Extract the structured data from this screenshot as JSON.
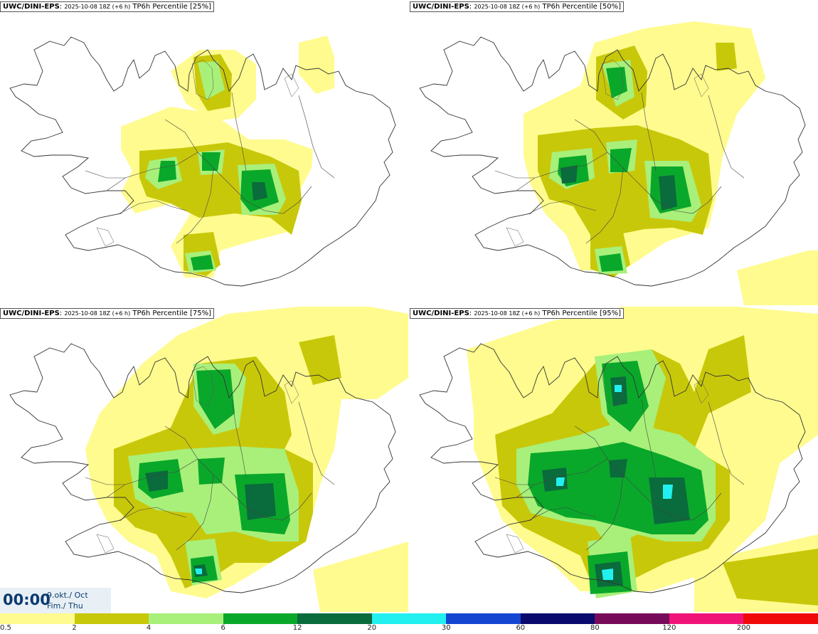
{
  "panels": [
    {
      "model": "UWC/DINI-EPS",
      "run": "2025-10-08 18Z (+6 h)",
      "field": "TP6h Percentile",
      "pct": "[25%]"
    },
    {
      "model": "UWC/DINI-EPS",
      "run": "2025-10-08 18Z (+6 h)",
      "field": "TP6h Percentile",
      "pct": "[50%]"
    },
    {
      "model": "UWC/DINI-EPS",
      "run": "2025-10-08 18Z (+6 h)",
      "field": "TP6h Percentile",
      "pct": "[75%]"
    },
    {
      "model": "UWC/DINI-EPS",
      "run": "2025-10-08 18Z (+6 h)",
      "field": "TP6h Percentile",
      "pct": "[95%]"
    }
  ],
  "timestamp": {
    "time": "00:00",
    "date": "9.okt./ Oct",
    "day": "Fim./ Thu"
  },
  "legend": {
    "colors": [
      "#fffb8e",
      "#c8c80a",
      "#a8f07a",
      "#0aa82a",
      "#0a6b3c",
      "#22f0f0",
      "#1446d2",
      "#0a0a6e",
      "#780a5a",
      "#f01478",
      "#f00a0a"
    ],
    "labels": [
      "0.5",
      "2",
      "4",
      "6",
      "12",
      "20",
      "30",
      "60",
      "80",
      "120",
      "200"
    ]
  }
}
